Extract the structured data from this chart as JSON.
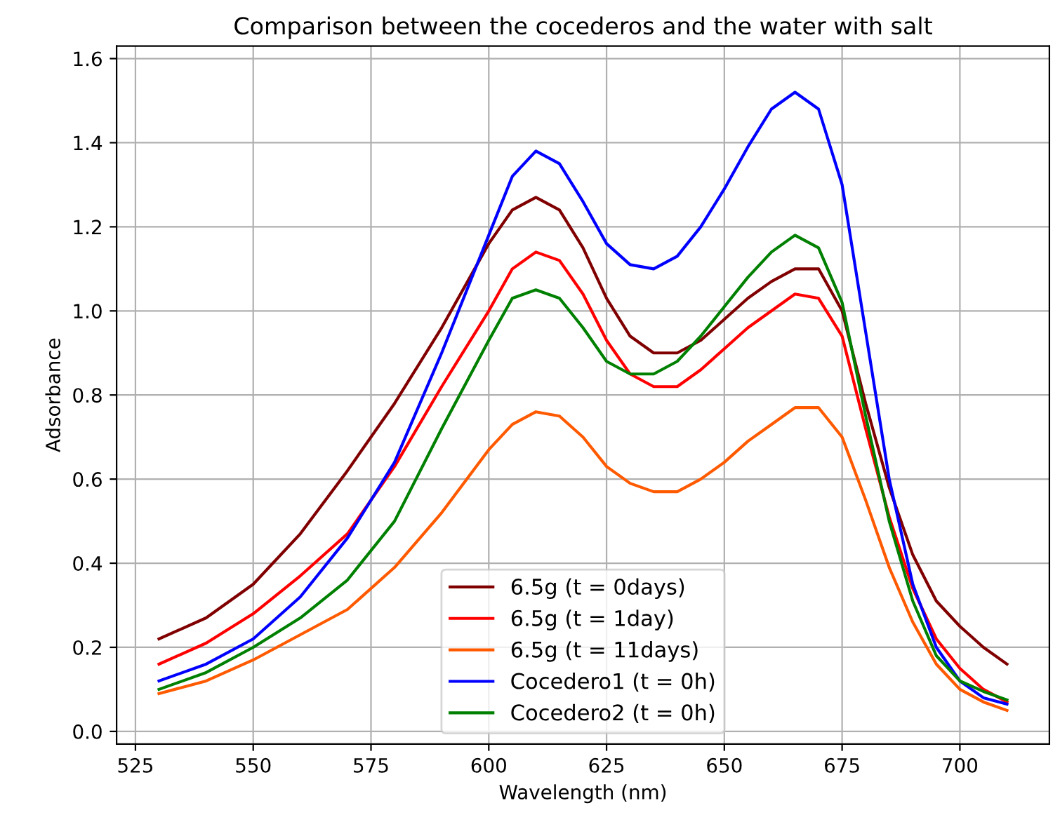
{
  "chart_data": {
    "type": "line",
    "title": "Comparison between the cocederos and the water with salt",
    "xlabel": "Wavelength (nm)",
    "ylabel": "Adsorbance",
    "x": [
      530,
      540,
      550,
      560,
      570,
      580,
      590,
      600,
      605,
      610,
      615,
      620,
      625,
      630,
      635,
      640,
      645,
      650,
      655,
      660,
      665,
      670,
      675,
      680,
      685,
      690,
      695,
      700,
      705,
      710
    ],
    "series": [
      {
        "name": "6.5g (t = 0days)",
        "color": "#800000",
        "values": [
          0.22,
          0.27,
          0.35,
          0.47,
          0.62,
          0.78,
          0.96,
          1.16,
          1.24,
          1.27,
          1.24,
          1.15,
          1.03,
          0.94,
          0.9,
          0.9,
          0.93,
          0.98,
          1.03,
          1.07,
          1.1,
          1.1,
          1.0,
          0.78,
          0.58,
          0.42,
          0.31,
          0.25,
          0.2,
          0.16
        ]
      },
      {
        "name": "6.5g (t = 1day)",
        "color": "#ff0000",
        "values": [
          0.16,
          0.21,
          0.28,
          0.37,
          0.47,
          0.63,
          0.82,
          1.0,
          1.1,
          1.14,
          1.12,
          1.04,
          0.93,
          0.85,
          0.82,
          0.82,
          0.86,
          0.91,
          0.96,
          1.0,
          1.04,
          1.03,
          0.94,
          0.72,
          0.51,
          0.34,
          0.22,
          0.15,
          0.1,
          0.07
        ]
      },
      {
        "name": "6.5g (t = 11days)",
        "color": "#ff5a00",
        "values": [
          0.09,
          0.12,
          0.17,
          0.23,
          0.29,
          0.39,
          0.52,
          0.67,
          0.73,
          0.76,
          0.75,
          0.7,
          0.63,
          0.59,
          0.57,
          0.57,
          0.6,
          0.64,
          0.69,
          0.73,
          0.77,
          0.77,
          0.7,
          0.55,
          0.39,
          0.26,
          0.16,
          0.1,
          0.07,
          0.05
        ]
      },
      {
        "name": "Cocedero1 (t = 0h)",
        "color": "#0000ff",
        "values": [
          0.12,
          0.16,
          0.22,
          0.32,
          0.46,
          0.64,
          0.9,
          1.18,
          1.32,
          1.38,
          1.35,
          1.26,
          1.16,
          1.11,
          1.1,
          1.13,
          1.2,
          1.29,
          1.39,
          1.48,
          1.52,
          1.48,
          1.3,
          0.95,
          0.6,
          0.35,
          0.2,
          0.12,
          0.08,
          0.065
        ]
      },
      {
        "name": "Cocedero2 (t = 0h)",
        "color": "#008000",
        "values": [
          0.1,
          0.14,
          0.2,
          0.27,
          0.36,
          0.5,
          0.72,
          0.93,
          1.03,
          1.05,
          1.03,
          0.96,
          0.88,
          0.85,
          0.85,
          0.88,
          0.94,
          1.01,
          1.08,
          1.14,
          1.18,
          1.15,
          1.02,
          0.75,
          0.5,
          0.31,
          0.18,
          0.12,
          0.095,
          0.075
        ]
      }
    ],
    "xlim": [
      521,
      719
    ],
    "xticks": [
      525,
      550,
      575,
      600,
      625,
      650,
      675,
      700
    ],
    "ylim": [
      -0.03,
      1.63
    ],
    "yticks": [
      {
        "value": 0,
        "label": "0.0"
      },
      {
        "value": 0.2,
        "label": "0.2"
      },
      {
        "value": 0.4,
        "label": "0.4"
      },
      {
        "value": 0.6,
        "label": "0.6"
      },
      {
        "value": 0.8,
        "label": "0.8"
      },
      {
        "value": 1.0,
        "label": "1.0"
      },
      {
        "value": 1.2,
        "label": "1.2"
      },
      {
        "value": 1.4,
        "label": "1.4"
      },
      {
        "value": 1.6,
        "label": "1.6"
      }
    ],
    "grid": true,
    "legend": "bottom",
    "marker": "none",
    "line_style": "solid"
  }
}
